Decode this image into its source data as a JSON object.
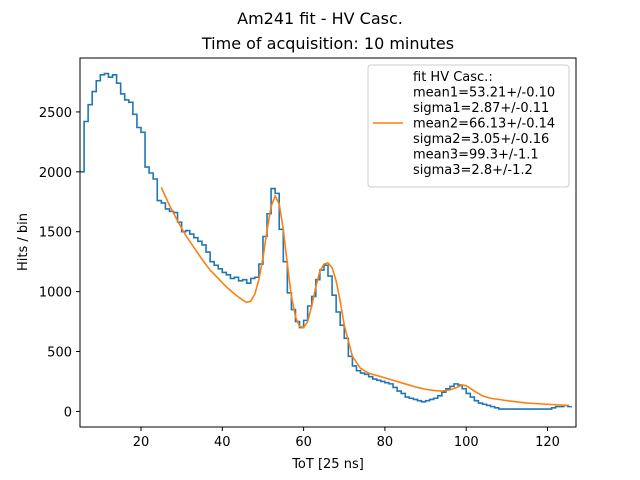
{
  "chart_data": {
    "type": "line",
    "title": "Am241 fit - HV Casc.",
    "subtitle": "Time of acquisition: 10 minutes",
    "xlabel": "ToT [25 ns]",
    "ylabel": "Hits / bin",
    "xlim": [
      5,
      127
    ],
    "ylim": [
      -130,
      2950
    ],
    "xticks": [
      20,
      40,
      60,
      80,
      100,
      120
    ],
    "yticks": [
      0,
      500,
      1000,
      1500,
      2000,
      2500
    ],
    "grid": false,
    "legend_position": "top-right",
    "legend_lines": [
      "fit HV Casc.:",
      "mean1=53.21+/-0.10",
      "sigma1=2.87+/-0.11",
      "mean2=66.13+/-0.14",
      "sigma2=3.05+/-0.16",
      "mean3=99.3+/-1.1",
      "sigma3=2.8+/-1.2"
    ],
    "colors": {
      "histogram": "#1f77b4",
      "fit": "#ff7f0e"
    },
    "histogram": {
      "bin_width": 1,
      "x_start": 5,
      "values": [
        2000,
        2420,
        2560,
        2670,
        2760,
        2810,
        2820,
        2790,
        2810,
        2740,
        2650,
        2600,
        2580,
        2480,
        2370,
        2330,
        2040,
        1990,
        1940,
        1760,
        1740,
        1690,
        1670,
        1660,
        1580,
        1500,
        1510,
        1480,
        1450,
        1420,
        1390,
        1330,
        1250,
        1220,
        1190,
        1160,
        1140,
        1110,
        1120,
        1090,
        1100,
        1070,
        1110,
        1120,
        1230,
        1460,
        1650,
        1860,
        1820,
        1520,
        1250,
        990,
        850,
        750,
        700,
        760,
        880,
        960,
        1100,
        1180,
        1220,
        1130,
        970,
        830,
        720,
        610,
        460,
        380,
        340,
        320,
        310,
        290,
        270,
        260,
        250,
        240,
        230,
        200,
        170,
        150,
        120,
        110,
        100,
        90,
        80,
        90,
        100,
        110,
        130,
        160,
        190,
        210,
        230,
        220,
        190,
        150,
        120,
        90,
        70,
        60,
        50,
        40,
        30,
        20,
        20,
        20,
        20,
        20,
        20,
        20,
        20,
        20,
        20,
        20,
        20,
        20,
        30,
        40,
        40,
        50,
        40
      ]
    },
    "series": [
      {
        "name": "fit HV Casc.",
        "x": [
          25,
          27,
          29,
          31,
          33,
          35,
          37,
          39,
          41,
          43,
          45,
          46,
          47,
          48,
          49,
          50,
          51,
          52,
          53,
          54,
          55,
          56,
          57,
          58,
          59,
          60,
          61,
          62,
          63,
          64,
          65,
          66,
          67,
          68,
          69,
          70,
          72,
          74,
          76,
          78,
          80,
          82,
          84,
          86,
          88,
          90,
          92,
          94,
          96,
          98,
          99,
          100,
          102,
          104,
          106,
          110,
          115,
          120,
          125
        ],
        "y": [
          1870,
          1720,
          1590,
          1470,
          1370,
          1270,
          1180,
          1110,
          1040,
          980,
          930,
          910,
          920,
          980,
          1100,
          1280,
          1510,
          1710,
          1800,
          1730,
          1520,
          1230,
          960,
          790,
          710,
          700,
          750,
          880,
          1040,
          1170,
          1230,
          1240,
          1200,
          1090,
          920,
          720,
          460,
          360,
          320,
          300,
          280,
          260,
          240,
          220,
          200,
          185,
          175,
          170,
          180,
          205,
          220,
          215,
          170,
          130,
          110,
          90,
          70,
          60,
          50
        ]
      }
    ]
  }
}
